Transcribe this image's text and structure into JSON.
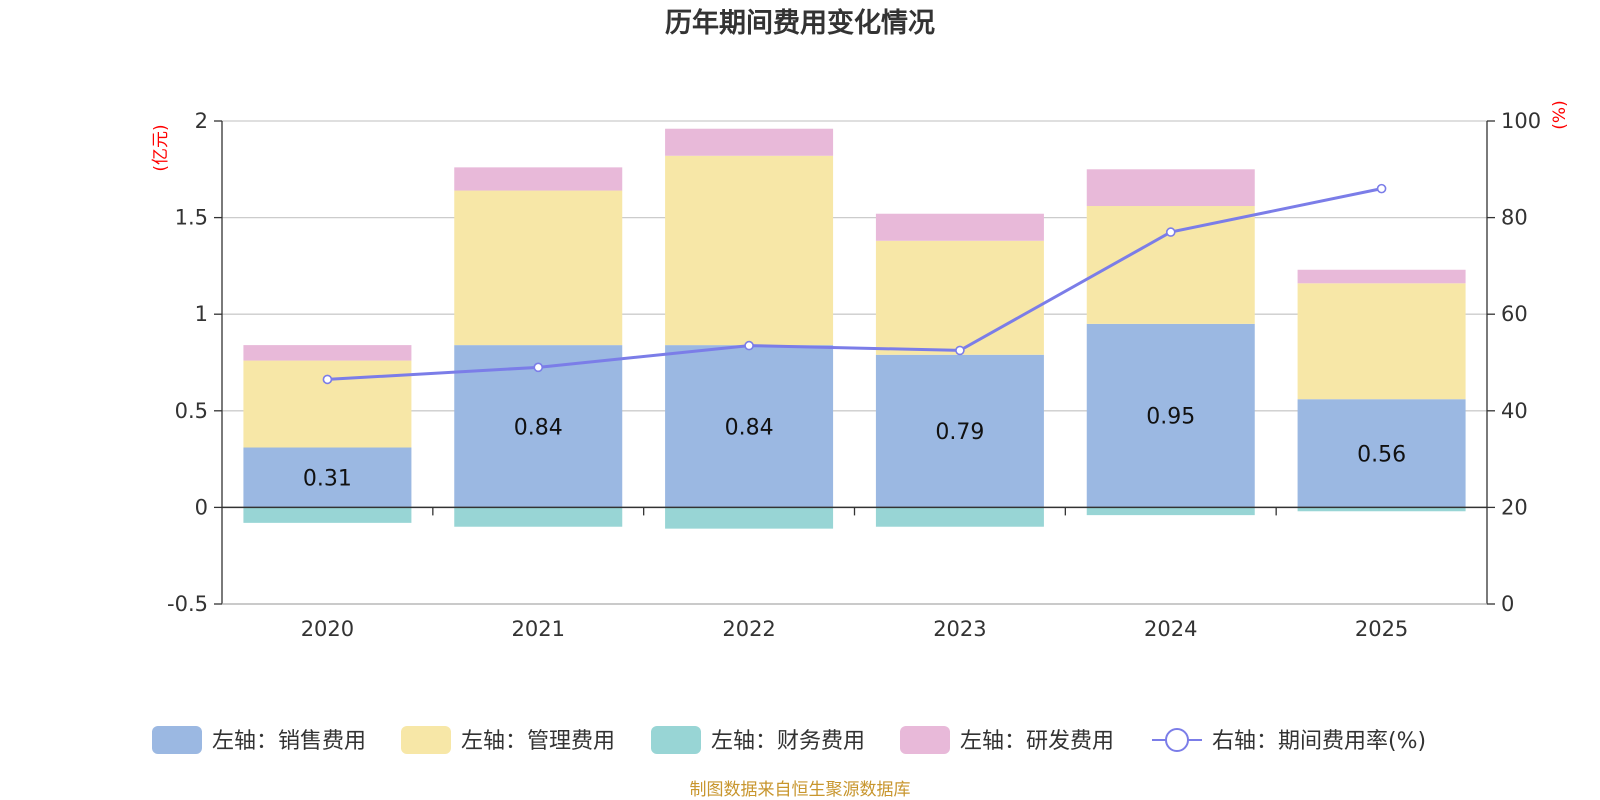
{
  "chart_data": {
    "type": "bar",
    "stacked": true,
    "title": "历年期间费用变化情况",
    "categories": [
      "2020",
      "2021",
      "2022",
      "2023",
      "2024",
      "2025"
    ],
    "left_axis": {
      "unit": "(亿元)",
      "min": -0.5,
      "max": 2,
      "ticks": [
        "2",
        "1.5",
        "1",
        "0.5",
        "0",
        "-0.5"
      ],
      "tick_values": [
        2,
        1.5,
        1,
        0.5,
        0,
        -0.5
      ]
    },
    "right_axis": {
      "unit": "(%)",
      "min": 0,
      "max": 100,
      "ticks": [
        "100",
        "80",
        "60",
        "40",
        "20",
        "0"
      ],
      "tick_values": [
        100,
        80,
        60,
        40,
        20,
        0
      ]
    },
    "series": [
      {
        "name": "左轴：销售费用",
        "axis": "left",
        "color": "#9bb8e2",
        "values": [
          0.31,
          0.84,
          0.84,
          0.79,
          0.95,
          0.56
        ],
        "labels": [
          "0.31",
          "0.84",
          "0.84",
          "0.79",
          "0.95",
          "0.56"
        ]
      },
      {
        "name": "左轴：管理费用",
        "axis": "left",
        "color": "#f7e7a7",
        "values": [
          0.45,
          0.8,
          0.98,
          0.59,
          0.61,
          0.6
        ]
      },
      {
        "name": "左轴：财务费用",
        "axis": "left",
        "color": "#98d5d5",
        "values": [
          -0.08,
          -0.1,
          -0.11,
          -0.1,
          -0.04,
          -0.02
        ]
      },
      {
        "name": "左轴：研发费用",
        "axis": "left",
        "color": "#e8b9d9",
        "values": [
          0.08,
          0.12,
          0.14,
          0.14,
          0.19,
          0.07
        ]
      },
      {
        "name": "右轴：期间费用率(%)",
        "axis": "right",
        "type": "line",
        "color": "#7b7de8",
        "values": [
          46.5,
          49,
          53.5,
          52.5,
          77,
          86
        ]
      }
    ],
    "source": "制图数据来自恒生聚源数据库"
  }
}
